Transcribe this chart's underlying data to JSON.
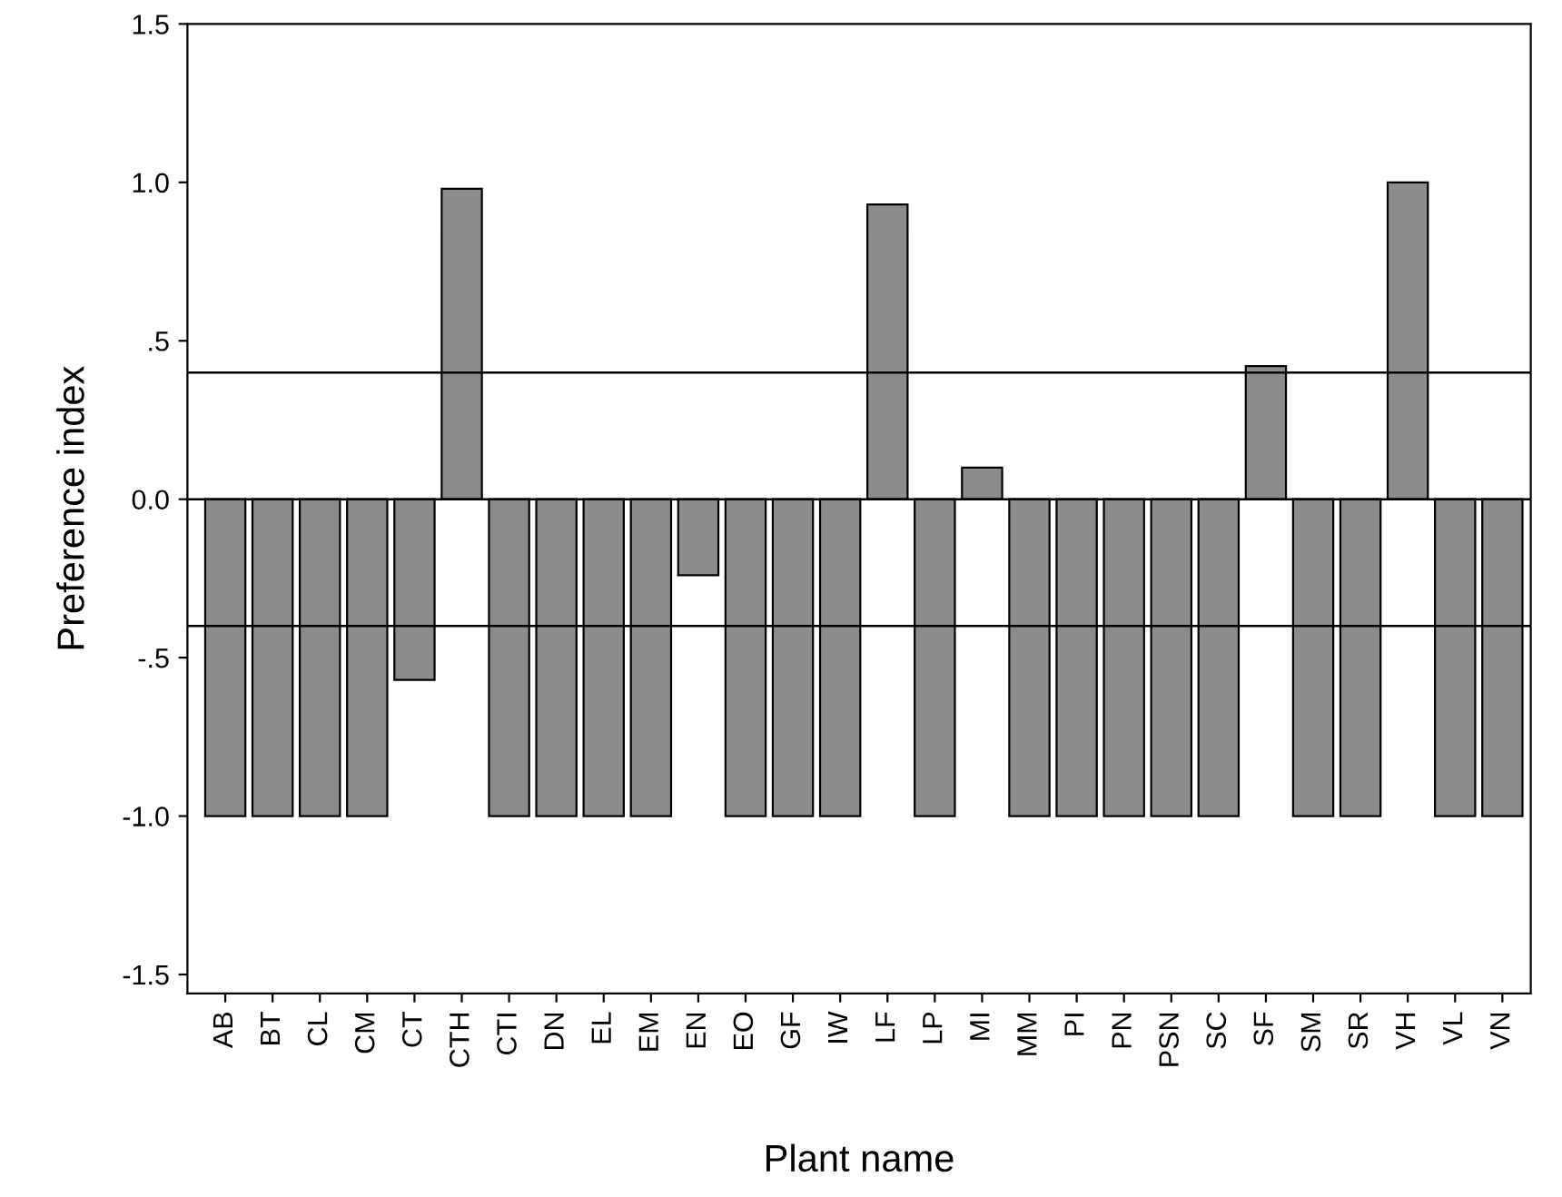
{
  "chart_data": {
    "type": "bar",
    "xlabel": "Plant name",
    "ylabel": "Preference index",
    "categories": [
      "AB",
      "BT",
      "CL",
      "CM",
      "CT",
      "CTH",
      "CTI",
      "DN",
      "EL",
      "EM",
      "EN",
      "EO",
      "GF",
      "IW",
      "LF",
      "LP",
      "MI",
      "MM",
      "PI",
      "PN",
      "PSN",
      "SC",
      "SF",
      "SM",
      "SR",
      "VH",
      "VL",
      "VN"
    ],
    "values": [
      -1,
      -1,
      -1,
      -1,
      -0.57,
      0.98,
      -1,
      -1,
      -1,
      -1,
      -0.24,
      -1,
      -1,
      -1,
      0.93,
      -1,
      0.1,
      -1,
      -1,
      -1,
      -1,
      -1,
      0.42,
      -1,
      -1,
      1.0,
      -1,
      -1
    ],
    "color": "#8c8c8c",
    "ylim": [
      -1.56,
      1.5
    ],
    "yticks": [
      {
        "value": -1.5,
        "label": "-1.5"
      },
      {
        "value": -1.0,
        "label": "-1.0"
      },
      {
        "value": -0.5,
        "label": "-.5"
      },
      {
        "value": 0.0,
        "label": "0.0"
      },
      {
        "value": 0.5,
        "label": ".5"
      },
      {
        "value": 1.0,
        "label": "1.0"
      },
      {
        "value": 1.5,
        "label": "1.5"
      }
    ],
    "ref_lines": [
      {
        "axis": "y",
        "value": 0.4,
        "color": "#000000"
      },
      {
        "axis": "y",
        "value": -0.4,
        "color": "#000000"
      },
      {
        "axis": "y",
        "value": 0.0,
        "color": "#000000"
      }
    ],
    "grid": false,
    "legend": false
  }
}
